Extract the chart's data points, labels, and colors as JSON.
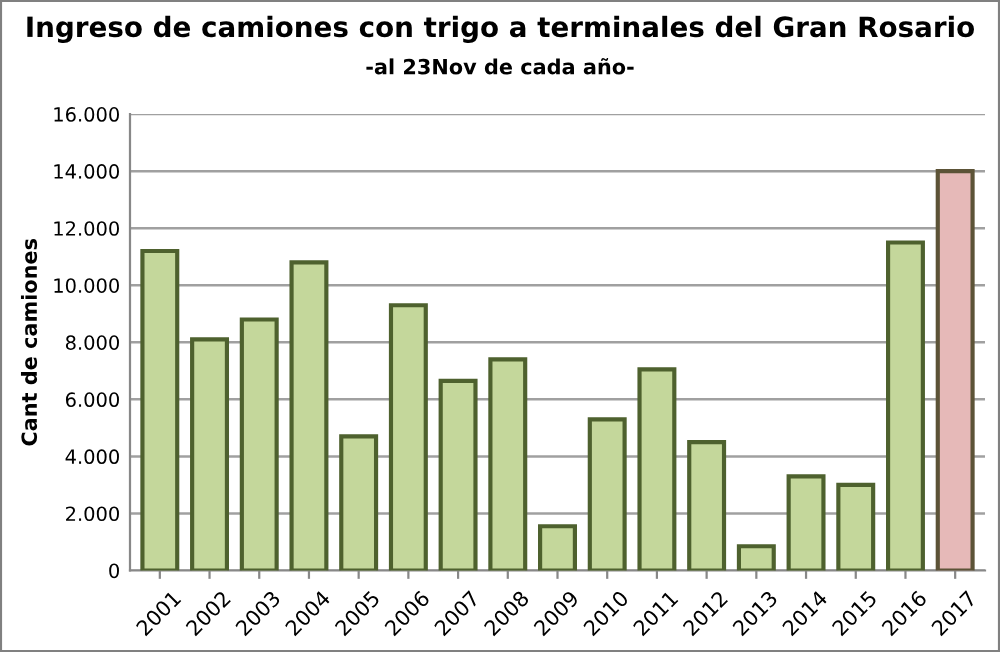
{
  "chart_data": {
    "type": "bar",
    "title": "Ingreso de camiones con trigo a terminales del Gran Rosario",
    "subtitle": "-al 23Nov de cada año-",
    "ylabel": "Cant de camiones",
    "categories": [
      "2001",
      "2002",
      "2003",
      "2004",
      "2005",
      "2006",
      "2007",
      "2008",
      "2009",
      "2010",
      "2011",
      "2012",
      "2013",
      "2014",
      "2015",
      "2016",
      "2017"
    ],
    "values": [
      11200,
      8100,
      8800,
      10800,
      4700,
      9300,
      6650,
      7400,
      1550,
      5300,
      7050,
      4500,
      850,
      3300,
      3000,
      11500,
      14000
    ],
    "colors": [
      "#c4d79b",
      "#c4d79b",
      "#c4d79b",
      "#c4d79b",
      "#c4d79b",
      "#c4d79b",
      "#c4d79b",
      "#c4d79b",
      "#c4d79b",
      "#c4d79b",
      "#c4d79b",
      "#c4d79b",
      "#c4d79b",
      "#c4d79b",
      "#c4d79b",
      "#c4d79b",
      "#e6b9b8"
    ],
    "ylim": [
      0,
      16000
    ],
    "yticks": [
      0,
      {
        "value": 2000,
        "label": "2.000"
      },
      {
        "value": 4000,
        "label": "4.000"
      },
      {
        "value": 6000,
        "label": "6.000"
      },
      {
        "value": 8000,
        "label": "8.000"
      },
      {
        "value": 10000,
        "label": "10.000"
      },
      {
        "value": 12000,
        "label": "12.000"
      },
      {
        "value": 14000,
        "label": "14.000"
      },
      {
        "value": 16000,
        "label": "16.000"
      }
    ],
    "grid": "y",
    "legend": false
  }
}
